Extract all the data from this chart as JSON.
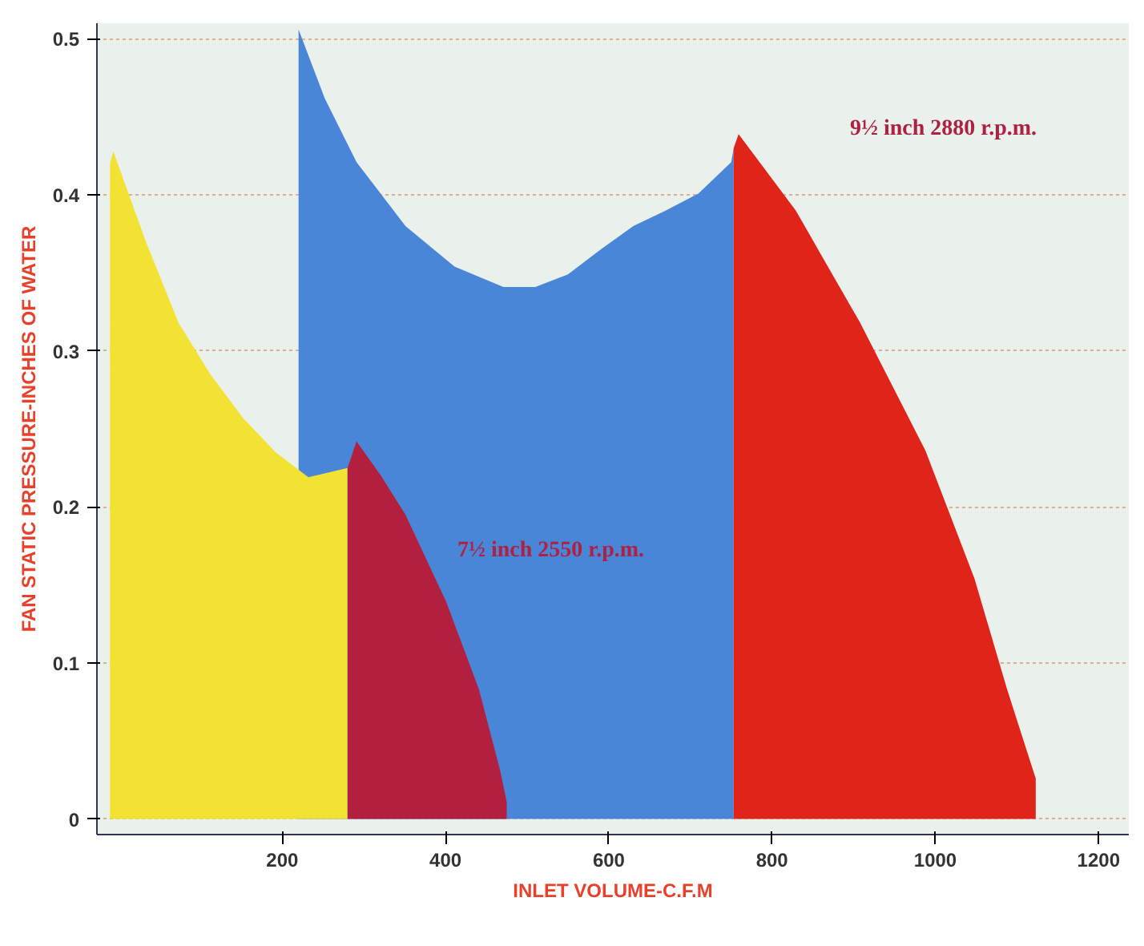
{
  "chart_data": {
    "type": "area",
    "xlabel": "INLET VOLUME-C.F.M",
    "ylabel": "FAN STATIC PRESSURE-INCHES OF WATER",
    "xlim": [
      -27,
      1237
    ],
    "ylim": [
      -0.01,
      0.51
    ],
    "xticks": [
      200,
      400,
      600,
      800,
      1000,
      1200
    ],
    "yticks": [
      0,
      0.1,
      0.2,
      0.3,
      0.4,
      0.5
    ],
    "grid": "y",
    "series": [
      {
        "color": "#4a86d8",
        "x": [
          220,
          220,
          252,
          291,
          351,
          411,
          471,
          510,
          550,
          590,
          630,
          670,
          710,
          750,
          753,
          753
        ],
        "values": [
          0,
          0.506,
          0.462,
          0.421,
          0.38,
          0.354,
          0.341,
          0.341,
          0.349,
          0.365,
          0.38,
          0.39,
          0.401,
          0.421,
          0.43,
          0
        ]
      },
      {
        "color": "#f2e233",
        "x": [
          -11,
          -11,
          -7,
          33,
          73,
          112,
          152,
          192,
          232,
          280,
          280
        ],
        "values": [
          0,
          0.42,
          0.428,
          0.37,
          0.318,
          0.285,
          0.257,
          0.235,
          0.219,
          0.225,
          0
        ]
      },
      {
        "color": "#b3203f",
        "x": [
          280,
          280,
          291,
          321,
          351,
          401,
          441,
          467,
          475,
          475
        ],
        "values": [
          0,
          0.225,
          0.242,
          0.22,
          0.195,
          0.139,
          0.083,
          0.031,
          0.011,
          0
        ]
      },
      {
        "color": "#e0241a",
        "x": [
          753,
          753,
          759,
          829,
          908,
          988,
          1048,
          1088,
          1123,
          1123
        ],
        "values": [
          0,
          0.43,
          0.439,
          0.39,
          0.318,
          0.236,
          0.154,
          0.083,
          0.026,
          0
        ]
      }
    ],
    "annotations": [
      "7½ inch 2550 r.p.m.",
      "9½ inch 2880 r.p.m."
    ]
  }
}
